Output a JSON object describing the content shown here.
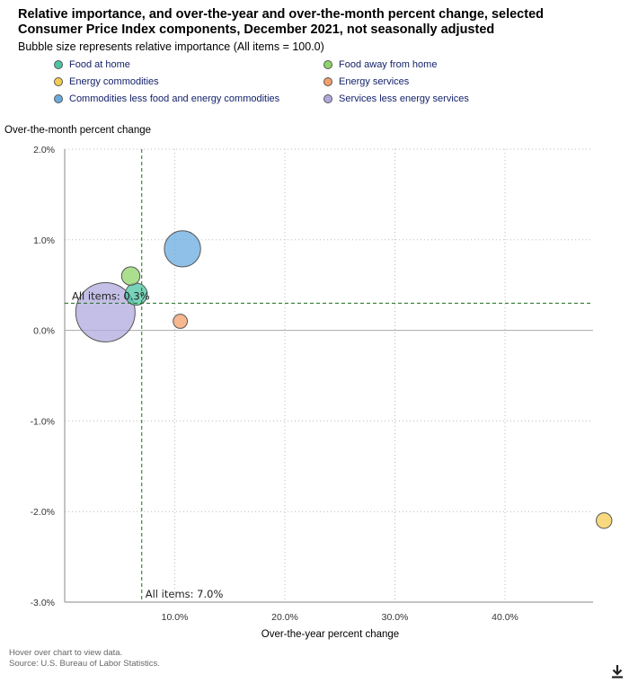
{
  "title": "Relative importance, and over-the-year and over-the-month percent change, selected Consumer Price Index components, December 2021, not seasonally adjusted",
  "subtitle": "Bubble size represents relative importance (All items = 100.0)",
  "legend": [
    {
      "label": "Food at home",
      "color": "#4cc4a4"
    },
    {
      "label": "Food away from home",
      "color": "#8fd46a"
    },
    {
      "label": "Energy commodities",
      "color": "#f5cc52"
    },
    {
      "label": "Energy services",
      "color": "#f49f6a"
    },
    {
      "label": "Commodities less food and energy commodities",
      "color": "#6aabdf"
    },
    {
      "label": "Services less energy services",
      "color": "#b0a9de"
    }
  ],
  "chart_data": {
    "type": "scatter",
    "subtype": "bubble",
    "xlabel": "Over-the-year percent change",
    "ylabel": "Over-the-month percent change",
    "xlim": [
      0,
      48
    ],
    "ylim": [
      -3.0,
      2.0
    ],
    "x_ticks": [
      10,
      20,
      30,
      40
    ],
    "x_tick_labels": [
      "10.0%",
      "20.0%",
      "30.0%",
      "40.0%"
    ],
    "y_ticks": [
      2.0,
      1.0,
      0.0,
      -1.0,
      -2.0,
      -3.0
    ],
    "y_tick_labels": [
      "2.0%",
      "1.0%",
      "0.0%",
      "-1.0%",
      "-2.0%",
      "-3.0%"
    ],
    "grid": true,
    "series": [
      {
        "name": "Food at home",
        "x": 6.5,
        "y": 0.4,
        "relative_importance": 8.0,
        "color": "#4cc4a4"
      },
      {
        "name": "Food away from home",
        "x": 6.0,
        "y": 0.6,
        "relative_importance": 5.5,
        "color": "#8fd46a"
      },
      {
        "name": "Energy commodities",
        "x": 49.0,
        "y": -2.1,
        "relative_importance": 4.0,
        "color": "#f5cc52"
      },
      {
        "name": "Energy services",
        "x": 10.5,
        "y": 0.1,
        "relative_importance": 3.3,
        "color": "#f49f6a"
      },
      {
        "name": "Commodities less food and energy commodities",
        "x": 10.7,
        "y": 0.9,
        "relative_importance": 21.5,
        "color": "#6aabdf"
      },
      {
        "name": "Services less energy services",
        "x": 3.7,
        "y": 0.2,
        "relative_importance": 57.5,
        "color": "#b0a9de"
      }
    ],
    "reference_lines": [
      {
        "axis": "x",
        "value": 7.0,
        "label": "All items: 7.0%"
      },
      {
        "axis": "y",
        "value": 0.3,
        "label": "All items: 0.3%"
      }
    ]
  },
  "footer": {
    "hover_note": "Hover over chart to view data.",
    "source": "Source: U.S. Bureau of Labor Statistics."
  },
  "icons": {
    "download": "download-icon"
  }
}
